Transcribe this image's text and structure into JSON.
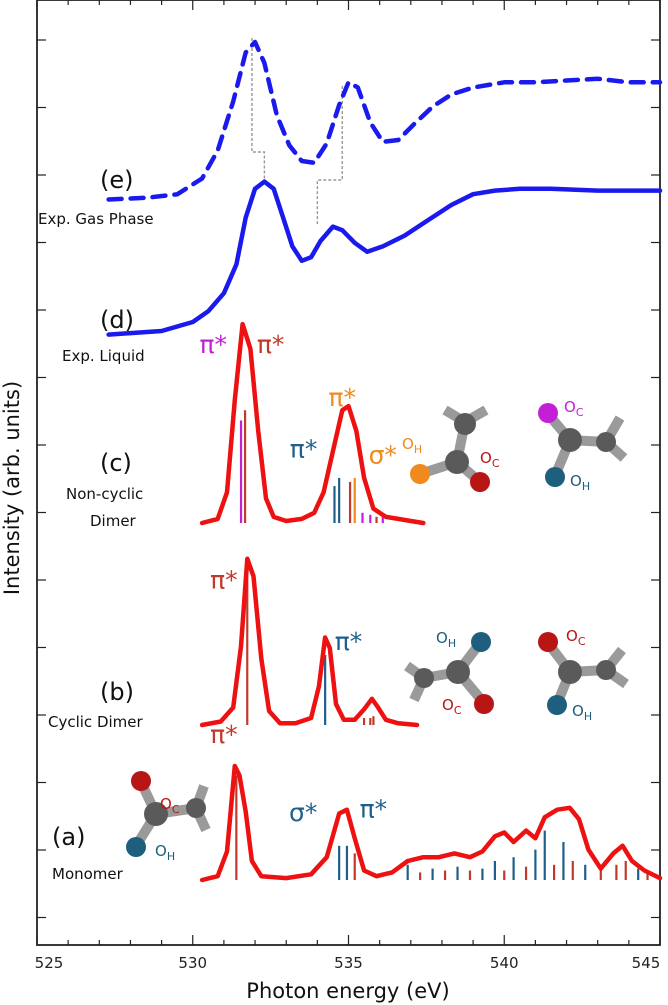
{
  "chart_data": {
    "type": "line",
    "title": "",
    "xlabel": "Photon energy (eV)",
    "ylabel": "Intensity (arb. units)",
    "xlim": [
      525,
      545
    ],
    "xticks": [
      "525",
      "530",
      "535",
      "540",
      "545"
    ],
    "colors": {
      "experiment": "#1a1aee",
      "theory": "#ee1111",
      "stick_pi": "#c0392b",
      "stick_sigma": "#1f5f8b",
      "orange": "#f08a1e",
      "magenta": "#c31fd6",
      "carbon": "#5a5a5a",
      "bond": "#9a9a9a",
      "oc_atom": "#b81515",
      "oh_atom": "#1d5f7d"
    },
    "panels": [
      {
        "key": "e",
        "letter": "(e)",
        "name": "Exp. Gas Phase",
        "style": "dashed",
        "color": "#1a1aee",
        "baseline": 0.0,
        "points": [
          [
            527.3,
            0.02
          ],
          [
            528.5,
            0.03
          ],
          [
            529.5,
            0.05
          ],
          [
            530.3,
            0.14
          ],
          [
            530.8,
            0.3
          ],
          [
            531.3,
            0.58
          ],
          [
            531.7,
            0.86
          ],
          [
            532.0,
            0.92
          ],
          [
            532.3,
            0.8
          ],
          [
            532.7,
            0.5
          ],
          [
            533.1,
            0.33
          ],
          [
            533.5,
            0.24
          ],
          [
            533.9,
            0.23
          ],
          [
            534.3,
            0.34
          ],
          [
            534.7,
            0.56
          ],
          [
            535.0,
            0.69
          ],
          [
            535.3,
            0.66
          ],
          [
            535.7,
            0.46
          ],
          [
            536.1,
            0.35
          ],
          [
            536.6,
            0.36
          ],
          [
            537.1,
            0.45
          ],
          [
            537.7,
            0.55
          ],
          [
            538.3,
            0.62
          ],
          [
            539.0,
            0.66
          ],
          [
            540.0,
            0.69
          ],
          [
            541.0,
            0.69
          ],
          [
            542.0,
            0.7
          ],
          [
            543.0,
            0.71
          ],
          [
            544.0,
            0.69
          ],
          [
            545.0,
            0.69
          ]
        ]
      },
      {
        "key": "d",
        "letter": "(d)",
        "name": "Exp. Liquid",
        "style": "solid",
        "color": "#1a1aee",
        "baseline": 0.0,
        "points": [
          [
            527.3,
            0.03
          ],
          [
            529.0,
            0.05
          ],
          [
            530.0,
            0.1
          ],
          [
            530.5,
            0.16
          ],
          [
            531.0,
            0.26
          ],
          [
            531.4,
            0.42
          ],
          [
            531.7,
            0.68
          ],
          [
            532.0,
            0.84
          ],
          [
            532.3,
            0.88
          ],
          [
            532.6,
            0.84
          ],
          [
            532.9,
            0.68
          ],
          [
            533.2,
            0.52
          ],
          [
            533.5,
            0.44
          ],
          [
            533.8,
            0.46
          ],
          [
            534.1,
            0.55
          ],
          [
            534.5,
            0.63
          ],
          [
            534.8,
            0.61
          ],
          [
            535.2,
            0.54
          ],
          [
            535.6,
            0.49
          ],
          [
            536.1,
            0.52
          ],
          [
            536.8,
            0.58
          ],
          [
            537.5,
            0.66
          ],
          [
            538.3,
            0.75
          ],
          [
            539.0,
            0.81
          ],
          [
            539.7,
            0.83
          ],
          [
            540.5,
            0.84
          ],
          [
            541.5,
            0.84
          ],
          [
            543.0,
            0.83
          ],
          [
            545.0,
            0.83
          ]
        ]
      },
      {
        "key": "c",
        "letter": "(c)",
        "name": "Non-cyclic Dimer",
        "style": "solid",
        "color": "#ee1111",
        "baseline": 0.0,
        "points": [
          [
            530.3,
            0.0
          ],
          [
            530.8,
            0.02
          ],
          [
            531.1,
            0.15
          ],
          [
            531.35,
            0.6
          ],
          [
            531.6,
            0.97
          ],
          [
            531.85,
            0.85
          ],
          [
            532.1,
            0.45
          ],
          [
            532.35,
            0.12
          ],
          [
            532.6,
            0.03
          ],
          [
            533.0,
            0.01
          ],
          [
            533.5,
            0.02
          ],
          [
            533.9,
            0.05
          ],
          [
            534.2,
            0.15
          ],
          [
            534.5,
            0.35
          ],
          [
            534.8,
            0.55
          ],
          [
            535.0,
            0.57
          ],
          [
            535.25,
            0.45
          ],
          [
            535.5,
            0.22
          ],
          [
            535.8,
            0.07
          ],
          [
            536.2,
            0.03
          ],
          [
            536.6,
            0.02
          ],
          [
            537.0,
            0.01
          ],
          [
            537.4,
            0.0
          ]
        ],
        "sticks": [
          [
            531.55,
            0.5,
            "magenta"
          ],
          [
            531.68,
            0.55,
            "stick_pi"
          ],
          [
            534.55,
            0.18,
            "stick_sigma"
          ],
          [
            534.7,
            0.22,
            "stick_sigma"
          ],
          [
            535.05,
            0.2,
            "stick_pi"
          ],
          [
            535.2,
            0.22,
            "orange"
          ],
          [
            535.45,
            0.05,
            "magenta"
          ],
          [
            535.7,
            0.04,
            "magenta"
          ],
          [
            535.9,
            0.03,
            "stick_pi"
          ],
          [
            536.1,
            0.03,
            "magenta"
          ]
        ],
        "labels": [
          {
            "text": "π*",
            "x": 531.1,
            "y": 0.83,
            "color": "magenta",
            "anchor": "end"
          },
          {
            "text": "π*",
            "x": 532.5,
            "y": 0.83,
            "color": "stick_pi",
            "anchor": "middle"
          },
          {
            "text": "π*",
            "x": 534.8,
            "y": 0.57,
            "color": "orange",
            "anchor": "middle"
          },
          {
            "text": "π*",
            "x": 534.0,
            "y": 0.32,
            "color": "stick_sigma",
            "anchor": "end"
          },
          {
            "text": "σ*",
            "x": 536.1,
            "y": 0.29,
            "color": "orange",
            "anchor": "middle"
          }
        ],
        "molecule_labels": [
          {
            "text": "O",
            "sub": "H",
            "color": "orange"
          },
          {
            "text": "O",
            "sub": "C",
            "color": "oc_atom"
          },
          {
            "text": "O",
            "sub": "C",
            "color": "magenta"
          },
          {
            "text": "O",
            "sub": "H",
            "color": "oh_atom"
          }
        ]
      },
      {
        "key": "b",
        "letter": "(b)",
        "name": "Cyclic Dimer",
        "style": "solid",
        "color": "#ee1111",
        "baseline": 0.0,
        "points": [
          [
            530.3,
            0.0
          ],
          [
            530.9,
            0.02
          ],
          [
            531.3,
            0.1
          ],
          [
            531.55,
            0.45
          ],
          [
            531.75,
            0.95
          ],
          [
            531.95,
            0.85
          ],
          [
            532.2,
            0.38
          ],
          [
            532.45,
            0.08
          ],
          [
            532.8,
            0.01
          ],
          [
            533.3,
            0.01
          ],
          [
            533.8,
            0.04
          ],
          [
            534.05,
            0.22
          ],
          [
            534.25,
            0.5
          ],
          [
            534.4,
            0.44
          ],
          [
            534.6,
            0.12
          ],
          [
            534.85,
            0.03
          ],
          [
            535.2,
            0.03
          ],
          [
            535.5,
            0.09
          ],
          [
            535.75,
            0.15
          ],
          [
            535.95,
            0.1
          ],
          [
            536.2,
            0.03
          ],
          [
            536.6,
            0.01
          ],
          [
            537.2,
            0.0
          ]
        ],
        "sticks": [
          [
            531.75,
            0.85,
            "stick_pi"
          ],
          [
            534.25,
            0.4,
            "stick_sigma"
          ],
          [
            535.5,
            0.04,
            "stick_pi"
          ],
          [
            535.7,
            0.04,
            "stick_pi"
          ],
          [
            535.8,
            0.05,
            "stick_pi"
          ]
        ],
        "labels": [
          {
            "text": "π*",
            "x": 531.0,
            "y": 0.78,
            "color": "stick_pi",
            "anchor": "middle"
          },
          {
            "text": "π*",
            "x": 535.0,
            "y": 0.43,
            "color": "stick_sigma",
            "anchor": "middle"
          }
        ],
        "molecule_labels": [
          {
            "text": "O",
            "sub": "H",
            "color": "oh_atom"
          },
          {
            "text": "O",
            "sub": "C",
            "color": "oc_atom"
          },
          {
            "text": "O",
            "sub": "C",
            "color": "oc_atom"
          },
          {
            "text": "O",
            "sub": "H",
            "color": "oh_atom"
          }
        ]
      },
      {
        "key": "a",
        "letter": "(a)",
        "name": "Monomer",
        "style": "solid",
        "color": "#ee1111",
        "baseline": 0.0,
        "points": [
          [
            530.3,
            0.0
          ],
          [
            530.8,
            0.02
          ],
          [
            531.1,
            0.15
          ],
          [
            531.35,
            0.6
          ],
          [
            531.5,
            0.55
          ],
          [
            531.7,
            0.36
          ],
          [
            531.9,
            0.1
          ],
          [
            532.2,
            0.02
          ],
          [
            533.0,
            0.01
          ],
          [
            533.8,
            0.03
          ],
          [
            534.3,
            0.12
          ],
          [
            534.7,
            0.35
          ],
          [
            534.95,
            0.37
          ],
          [
            535.2,
            0.22
          ],
          [
            535.5,
            0.05
          ],
          [
            535.9,
            0.02
          ],
          [
            536.4,
            0.04
          ],
          [
            536.9,
            0.1
          ],
          [
            537.4,
            0.12
          ],
          [
            537.9,
            0.12
          ],
          [
            538.4,
            0.14
          ],
          [
            538.9,
            0.12
          ],
          [
            539.3,
            0.15
          ],
          [
            539.7,
            0.23
          ],
          [
            540.0,
            0.25
          ],
          [
            540.3,
            0.2
          ],
          [
            540.7,
            0.26
          ],
          [
            541.0,
            0.22
          ],
          [
            541.3,
            0.33
          ],
          [
            541.7,
            0.37
          ],
          [
            542.1,
            0.38
          ],
          [
            542.4,
            0.32
          ],
          [
            542.7,
            0.16
          ],
          [
            543.1,
            0.06
          ],
          [
            543.5,
            0.14
          ],
          [
            543.8,
            0.18
          ],
          [
            544.1,
            0.1
          ],
          [
            544.5,
            0.05
          ],
          [
            545.0,
            0.01
          ]
        ],
        "sticks": [
          [
            531.4,
            0.55,
            "stick_pi"
          ],
          [
            534.7,
            0.18,
            "stick_sigma"
          ],
          [
            534.95,
            0.18,
            "stick_sigma"
          ],
          [
            535.2,
            0.14,
            "stick_pi"
          ],
          [
            536.9,
            0.08,
            "stick_sigma"
          ],
          [
            537.3,
            0.04,
            "stick_pi"
          ],
          [
            537.7,
            0.06,
            "stick_sigma"
          ],
          [
            538.1,
            0.05,
            "stick_pi"
          ],
          [
            538.5,
            0.07,
            "stick_sigma"
          ],
          [
            538.9,
            0.05,
            "stick_pi"
          ],
          [
            539.3,
            0.06,
            "stick_sigma"
          ],
          [
            539.7,
            0.1,
            "stick_sigma"
          ],
          [
            540.0,
            0.05,
            "stick_pi"
          ],
          [
            540.3,
            0.12,
            "stick_sigma"
          ],
          [
            540.7,
            0.07,
            "stick_pi"
          ],
          [
            541.0,
            0.16,
            "stick_sigma"
          ],
          [
            541.3,
            0.26,
            "stick_sigma"
          ],
          [
            541.6,
            0.08,
            "stick_pi"
          ],
          [
            541.9,
            0.2,
            "stick_sigma"
          ],
          [
            542.2,
            0.1,
            "stick_pi"
          ],
          [
            542.6,
            0.08,
            "stick_sigma"
          ],
          [
            543.1,
            0.06,
            "stick_pi"
          ],
          [
            543.6,
            0.08,
            "stick_pi"
          ],
          [
            543.9,
            0.1,
            "stick_pi"
          ],
          [
            544.3,
            0.06,
            "stick_sigma"
          ],
          [
            544.6,
            0.04,
            "stick_pi"
          ]
        ],
        "labels": [
          {
            "text": "π*",
            "x": 531.0,
            "y": 0.72,
            "color": "stick_pi",
            "anchor": "middle"
          },
          {
            "text": "σ*",
            "x": 534.0,
            "y": 0.31,
            "color": "stick_sigma",
            "anchor": "end"
          },
          {
            "text": "π*",
            "x": 535.8,
            "y": 0.33,
            "color": "stick_sigma",
            "anchor": "middle"
          }
        ],
        "molecule_labels": [
          {
            "text": "O",
            "sub": "C",
            "color": "oc_atom"
          },
          {
            "text": "O",
            "sub": "H",
            "color": "oh_atom"
          }
        ]
      }
    ],
    "connectors": [
      {
        "x_from": 531.9,
        "x_to": 532.3
      },
      {
        "x_from": 534.8,
        "x_to": 534.0
      }
    ]
  }
}
